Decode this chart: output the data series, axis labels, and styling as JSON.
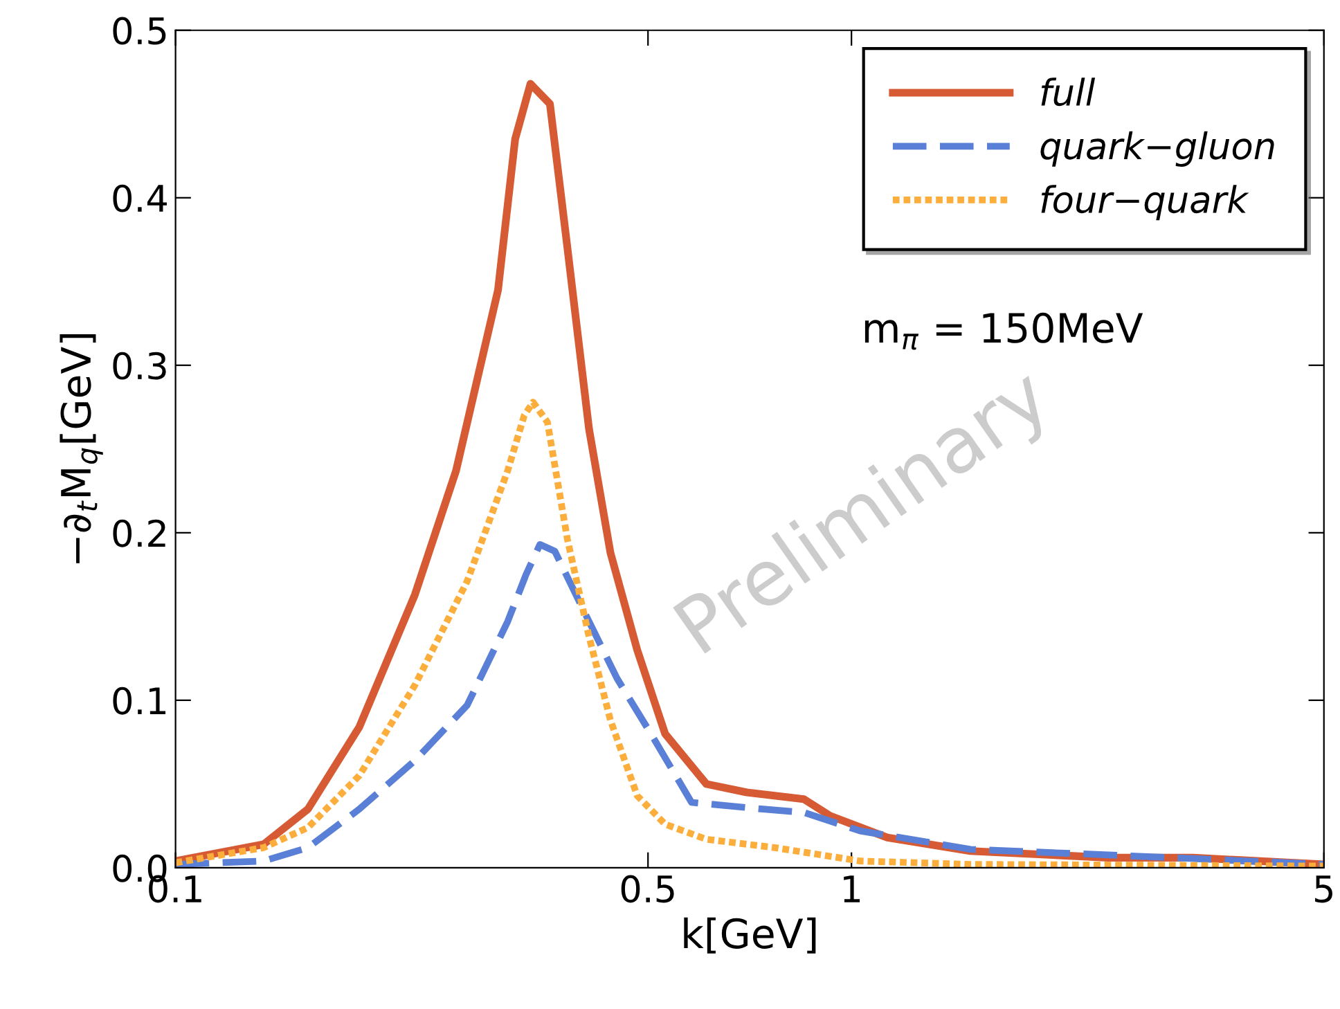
{
  "chart_data": {
    "type": "line",
    "xlabel": "k[GeV]",
    "ylabel": "−∂$_{t}$M$_{q}$[GeV]",
    "log": "x",
    "xlim": [
      0.1,
      5
    ],
    "ylim": [
      0,
      0.5
    ],
    "xticks": [
      0.1,
      0.5,
      1,
      5
    ],
    "yticks": [
      {
        "value": 0,
        "label": "0.0"
      },
      {
        "value": 0.1,
        "label": "0.1"
      },
      {
        "value": 0.2,
        "label": "0.2"
      },
      {
        "value": 0.3,
        "label": "0.3"
      },
      {
        "value": 0.4,
        "label": "0.4"
      },
      {
        "value": 0.5,
        "label": "0.5"
      }
    ],
    "grid": false,
    "legend": "top right",
    "marker": "none",
    "annotations": [
      "m$_{π}$ = 150MeV",
      "Preliminary"
    ],
    "series": [
      {
        "name": "full",
        "color": "#d65a33",
        "line_style": "solid",
        "x": [
          0.1,
          0.135,
          0.157,
          0.187,
          0.226,
          0.26,
          0.3,
          0.318,
          0.335,
          0.358,
          0.38,
          0.409,
          0.44,
          0.482,
          0.53,
          0.61,
          0.7,
          0.85,
          0.93,
          1.13,
          1.5,
          2.4,
          3.2,
          5
        ],
        "values": [
          0.004,
          0.014,
          0.035,
          0.084,
          0.163,
          0.237,
          0.345,
          0.435,
          0.468,
          0.456,
          0.37,
          0.262,
          0.188,
          0.13,
          0.08,
          0.05,
          0.045,
          0.041,
          0.031,
          0.018,
          0.01,
          0.006,
          0.006,
          0.002
        ]
      },
      {
        "name": "quark−gluon",
        "color": "#5a7fd6",
        "line_style": "dashed",
        "x": [
          0.1,
          0.135,
          0.157,
          0.187,
          0.226,
          0.27,
          0.31,
          0.33,
          0.346,
          0.364,
          0.4,
          0.45,
          0.505,
          0.58,
          0.74,
          0.85,
          1.03,
          1.5,
          3.0,
          5
        ],
        "values": [
          0.002,
          0.004,
          0.012,
          0.035,
          0.064,
          0.097,
          0.147,
          0.175,
          0.193,
          0.189,
          0.155,
          0.113,
          0.08,
          0.039,
          0.035,
          0.033,
          0.022,
          0.011,
          0.006,
          0.002
        ]
      },
      {
        "name": "four−quark",
        "color": "#fbae3c",
        "line_style": "dotted",
        "x": [
          0.1,
          0.135,
          0.157,
          0.187,
          0.226,
          0.27,
          0.31,
          0.328,
          0.338,
          0.355,
          0.38,
          0.409,
          0.44,
          0.482,
          0.53,
          0.61,
          0.77,
          1.03,
          1.5,
          5
        ],
        "values": [
          0.003,
          0.012,
          0.024,
          0.055,
          0.109,
          0.171,
          0.237,
          0.27,
          0.278,
          0.266,
          0.196,
          0.138,
          0.088,
          0.043,
          0.026,
          0.017,
          0.012,
          0.004,
          0.002,
          0.001
        ]
      }
    ]
  }
}
